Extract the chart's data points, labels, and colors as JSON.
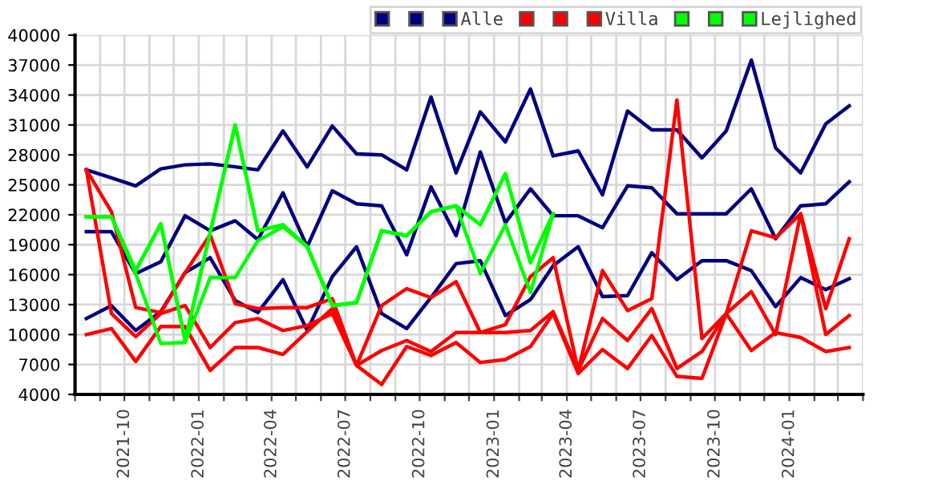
{
  "chart_data": {
    "type": "line",
    "x": [
      "2021-08-15",
      "2021-09-15",
      "2021-10-15",
      "2021-11-15",
      "2021-12-15",
      "2022-01-15",
      "2022-02-15",
      "2022-03-15",
      "2022-04-15",
      "2022-05-15",
      "2022-06-15",
      "2022-07-15",
      "2022-08-15",
      "2022-09-15",
      "2022-10-15",
      "2022-11-15",
      "2022-12-15",
      "2023-01-15",
      "2023-02-15",
      "2023-03-15",
      "2023-04-15",
      "2023-05-15",
      "2023-06-15",
      "2023-07-15",
      "2023-08-15",
      "2023-09-15",
      "2023-10-15",
      "2023-11-15",
      "2023-12-15",
      "2024-01-15",
      "2024-02-15",
      "2024-03-15"
    ],
    "series": [
      {
        "color": "#000080",
        "values": [
          26500,
          25700,
          24900,
          26600,
          27000,
          27100,
          26800,
          26500,
          30400,
          26800,
          30900,
          28100,
          28000,
          26500,
          33800,
          26200,
          32300,
          29300,
          34600,
          27900,
          28400,
          24000,
          32400,
          30500,
          30500,
          27700,
          30400,
          37500,
          28700,
          26200,
          31100,
          32900
        ]
      },
      {
        "color": "#000080",
        "values": [
          20300,
          20300,
          16100,
          17300,
          21900,
          20400,
          21400,
          19500,
          24200,
          18800,
          24400,
          23100,
          22900,
          18000,
          24800,
          19900,
          28300,
          21200,
          24600,
          21900,
          21900,
          20700,
          24900,
          24700,
          22100,
          22100,
          22100,
          24600,
          19600,
          22900,
          23100,
          25300
        ]
      },
      {
        "name": "Alle",
        "color": "#000080",
        "values": [
          11600,
          12900,
          10400,
          12300,
          16200,
          17700,
          13400,
          12200,
          15500,
          10400,
          15800,
          18800,
          12100,
          10600,
          13700,
          17100,
          17400,
          11900,
          13500,
          16900,
          18800,
          13800,
          13900,
          18200,
          15500,
          17400,
          17400,
          16400,
          12800,
          15700,
          14500,
          15600
        ]
      },
      {
        "color": "#ff0000",
        "values": [
          26500,
          22300,
          12700,
          12200,
          16200,
          20000,
          13100,
          12600,
          12700,
          12700,
          13600,
          6900,
          12900,
          14600,
          13700,
          15300,
          10200,
          11000,
          15800,
          17700,
          6400,
          16400,
          12400,
          13600,
          33500,
          9600,
          12100,
          8400,
          10200,
          9700,
          8300,
          8700
        ]
      },
      {
        "color": "#ff0000",
        "values": [
          26500,
          12100,
          9800,
          12100,
          12900,
          8700,
          11200,
          11600,
          10400,
          10900,
          12100,
          6900,
          8400,
          9400,
          8300,
          10200,
          10200,
          10200,
          10400,
          12300,
          6400,
          11600,
          9400,
          12600,
          6600,
          8300,
          12100,
          14300,
          10000,
          22100,
          10000,
          11900
        ]
      },
      {
        "name": "Villa",
        "color": "#ff0000",
        "values": [
          10000,
          10600,
          7300,
          10800,
          10800,
          6400,
          8700,
          8700,
          8000,
          10300,
          12600,
          6900,
          5000,
          8800,
          7900,
          9200,
          7200,
          7500,
          8800,
          12100,
          6100,
          8500,
          6600,
          9900,
          5800,
          5600,
          12100,
          20400,
          19700,
          22100,
          12600,
          19600
        ]
      },
      {
        "color": "#00ff00",
        "values": [
          21800,
          21800,
          16400,
          21100,
          9400,
          20200,
          31000,
          20400,
          21000,
          18800,
          12900,
          13200,
          20400,
          19900,
          22300,
          22900,
          21000,
          26100,
          17200,
          22100,
          null,
          null,
          null,
          null,
          null,
          null,
          null,
          null,
          null,
          null,
          null,
          null
        ]
      },
      {
        "color": "#00ff00",
        "values": [
          21800,
          21800,
          16100,
          9100,
          9200,
          15700,
          15700,
          19400,
          20800,
          18800,
          12900,
          13200,
          20400,
          19900,
          22300,
          22900,
          16100,
          21000,
          14200,
          22100,
          null,
          null,
          null,
          null,
          null,
          null,
          null,
          null,
          null,
          null,
          null,
          null
        ]
      },
      {
        "name": "Lejlighed",
        "color": "#00ff00",
        "values": [
          21800,
          21800,
          16400,
          21100,
          9400,
          20200,
          31000,
          20400,
          21000,
          18800,
          12900,
          13200,
          20400,
          19900,
          22300,
          22900,
          21000,
          26100,
          17200,
          22100,
          null,
          null,
          null,
          null,
          null,
          null,
          null,
          null,
          null,
          null,
          null,
          null
        ]
      }
    ],
    "xlim": [
      "2021-08-01",
      "2024-04-01"
    ],
    "xticks": [
      {
        "value": "2021-08-01",
        "label": null
      },
      {
        "value": "2021-09-01",
        "label": null
      },
      {
        "value": "2021-10-01",
        "label": "2021-10"
      },
      {
        "value": "2021-11-01",
        "label": null
      },
      {
        "value": "2021-12-01",
        "label": null
      },
      {
        "value": "2022-01-01",
        "label": "2022-01"
      },
      {
        "value": "2022-02-01",
        "label": null
      },
      {
        "value": "2022-03-01",
        "label": null
      },
      {
        "value": "2022-04-01",
        "label": "2022-04"
      },
      {
        "value": "2022-05-01",
        "label": null
      },
      {
        "value": "2022-06-01",
        "label": null
      },
      {
        "value": "2022-07-01",
        "label": "2022-07"
      },
      {
        "value": "2022-08-01",
        "label": null
      },
      {
        "value": "2022-09-01",
        "label": null
      },
      {
        "value": "2022-10-01",
        "label": "2022-10"
      },
      {
        "value": "2022-11-01",
        "label": null
      },
      {
        "value": "2022-12-01",
        "label": null
      },
      {
        "value": "2023-01-01",
        "label": "2023-01"
      },
      {
        "value": "2023-02-01",
        "label": null
      },
      {
        "value": "2023-03-01",
        "label": null
      },
      {
        "value": "2023-04-01",
        "label": "2023-04"
      },
      {
        "value": "2023-05-01",
        "label": null
      },
      {
        "value": "2023-06-01",
        "label": null
      },
      {
        "value": "2023-07-01",
        "label": "2023-07"
      },
      {
        "value": "2023-08-01",
        "label": null
      },
      {
        "value": "2023-09-01",
        "label": null
      },
      {
        "value": "2023-10-01",
        "label": "2023-10"
      },
      {
        "value": "2023-11-01",
        "label": null
      },
      {
        "value": "2023-12-01",
        "label": null
      },
      {
        "value": "2024-01-01",
        "label": "2024-01"
      },
      {
        "value": "2024-02-01",
        "label": null
      },
      {
        "value": "2024-03-01",
        "label": null
      },
      {
        "value": "2024-04-01",
        "label": null
      }
    ],
    "ylim": [
      4000,
      40000
    ],
    "yticks": [
      4000,
      7000,
      10000,
      13000,
      16000,
      19000,
      22000,
      25000,
      28000,
      31000,
      34000,
      37000,
      40000
    ],
    "grid": true,
    "legend": "top right",
    "marker": "none",
    "line_style": "solid"
  }
}
